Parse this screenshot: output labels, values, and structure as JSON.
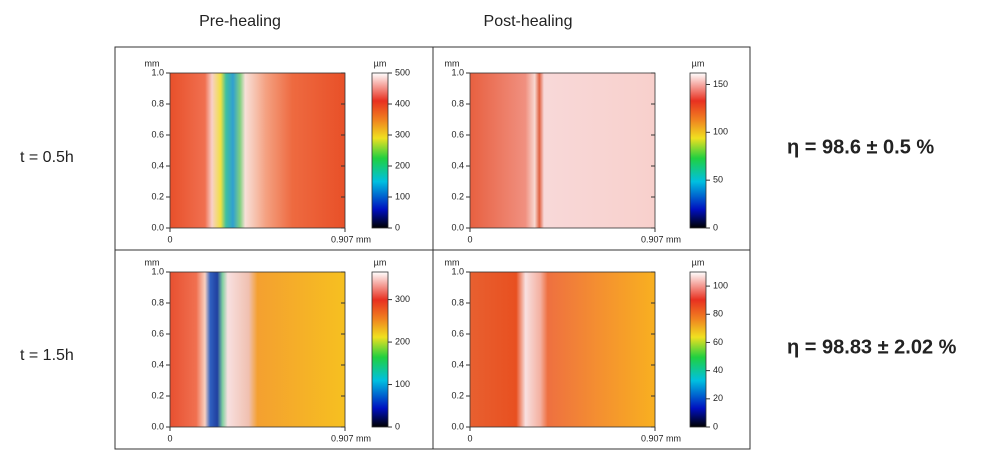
{
  "column_headers": [
    "Pre-healing",
    "Post-healing"
  ],
  "row_labels": [
    "t = 0.5h",
    "t = 1.5h"
  ],
  "efficiencies": [
    "η = 98.6 ± 0.5 %",
    "η = 98.83 ± 2.02 %"
  ],
  "panels": [
    {
      "y_unit": "mm",
      "xlim": [
        0,
        0.907
      ],
      "ylim": [
        0,
        1.0
      ],
      "xticks": [
        0,
        {
          "value": 0.907,
          "label": "0.907 mm"
        }
      ],
      "yticks": [
        {
          "value": 0,
          "label": "0.0"
        },
        {
          "value": 0.2,
          "label": "0.2"
        },
        {
          "value": 0.4,
          "label": "0.4"
        },
        {
          "value": 0.6,
          "label": "0.6"
        },
        {
          "value": 0.8,
          "label": "0.8"
        },
        {
          "value": 1,
          "label": "1.0"
        }
      ],
      "colorbar": {
        "unit": "µm",
        "lim": [
          0,
          500
        ],
        "ticks": [
          0,
          100,
          200,
          300,
          400,
          500
        ]
      }
    },
    {
      "y_unit": "mm",
      "xlim": [
        0,
        0.907
      ],
      "ylim": [
        0,
        1.0
      ],
      "xticks": [
        0,
        {
          "value": 0.907,
          "label": "0.907 mm"
        }
      ],
      "yticks": [
        {
          "value": 0,
          "label": "0.0"
        },
        {
          "value": 0.2,
          "label": "0.2"
        },
        {
          "value": 0.4,
          "label": "0.4"
        },
        {
          "value": 0.6,
          "label": "0.6"
        },
        {
          "value": 0.8,
          "label": "0.8"
        },
        {
          "value": 1,
          "label": "1.0"
        }
      ],
      "colorbar": {
        "unit": "µm",
        "lim": [
          0,
          162
        ],
        "ticks": [
          0,
          50,
          100,
          150
        ]
      }
    },
    {
      "y_unit": "mm",
      "xlim": [
        0,
        0.907
      ],
      "ylim": [
        0,
        1.0
      ],
      "xticks": [
        0,
        {
          "value": 0.907,
          "label": "0.907 mm"
        }
      ],
      "yticks": [
        {
          "value": 0,
          "label": "0.0"
        },
        {
          "value": 0.2,
          "label": "0.2"
        },
        {
          "value": 0.4,
          "label": "0.4"
        },
        {
          "value": 0.6,
          "label": "0.6"
        },
        {
          "value": 0.8,
          "label": "0.8"
        },
        {
          "value": 1,
          "label": "1.0"
        }
      ],
      "colorbar": {
        "unit": "µm",
        "lim": [
          0,
          365
        ],
        "ticks": [
          0,
          100,
          200,
          300
        ]
      }
    },
    {
      "y_unit": "mm",
      "xlim": [
        0,
        0.907
      ],
      "ylim": [
        0,
        1.0
      ],
      "xticks": [
        0,
        {
          "value": 0.907,
          "label": "0.907 mm"
        }
      ],
      "yticks": [
        {
          "value": 0,
          "label": "0.0"
        },
        {
          "value": 0.2,
          "label": "0.2"
        },
        {
          "value": 0.4,
          "label": "0.4"
        },
        {
          "value": 0.6,
          "label": "0.6"
        },
        {
          "value": 0.8,
          "label": "0.8"
        },
        {
          "value": 1,
          "label": "1.0"
        }
      ],
      "colorbar": {
        "unit": "µm",
        "lim": [
          0,
          110
        ],
        "ticks": [
          0,
          20,
          40,
          60,
          80,
          100
        ]
      }
    }
  ]
}
